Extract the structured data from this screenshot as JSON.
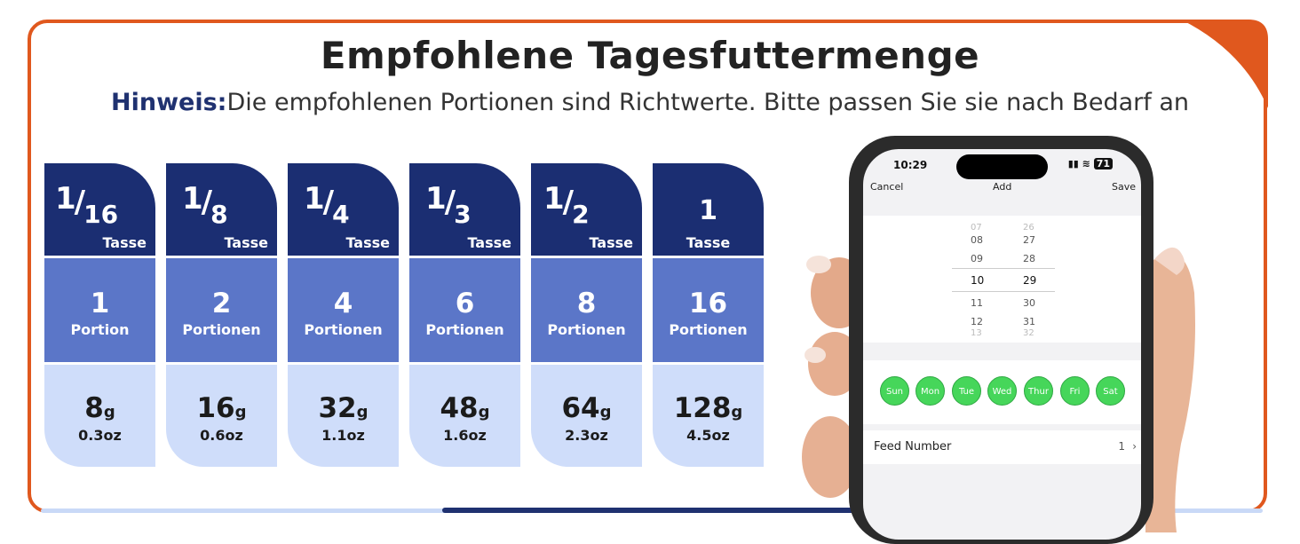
{
  "title": "Empfohlene Tagesfuttermenge",
  "note": {
    "prefix": "Hinweis:",
    "text": "Die empfohlenen Portionen sind Richtwerte. Bitte passen Sie sie nach Bedarf an"
  },
  "colors": {
    "frame": "#e0581e",
    "navy": "#1b2e72",
    "mid_blue": "#5b76c8",
    "light_blue": "#cfddfa"
  },
  "columns": [
    {
      "num": "1",
      "den": "16",
      "cup_label": "Tasse",
      "portion": "1",
      "portion_label": "Portion",
      "grams": "8",
      "g_unit": "g",
      "oz": "0.3oz"
    },
    {
      "num": "1",
      "den": "8",
      "cup_label": "Tasse",
      "portion": "2",
      "portion_label": "Portionen",
      "grams": "16",
      "g_unit": "g",
      "oz": "0.6oz"
    },
    {
      "num": "1",
      "den": "4",
      "cup_label": "Tasse",
      "portion": "4",
      "portion_label": "Portionen",
      "grams": "32",
      "g_unit": "g",
      "oz": "1.1oz"
    },
    {
      "num": "1",
      "den": "3",
      "cup_label": "Tasse",
      "portion": "6",
      "portion_label": "Portionen",
      "grams": "48",
      "g_unit": "g",
      "oz": "1.6oz"
    },
    {
      "num": "1",
      "den": "2",
      "cup_label": "Tasse",
      "portion": "8",
      "portion_label": "Portionen",
      "grams": "64",
      "g_unit": "g",
      "oz": "2.3oz"
    },
    {
      "whole": "1",
      "cup_label": "Tasse",
      "portion": "16",
      "portion_label": "Portionen",
      "grams": "128",
      "g_unit": "g",
      "oz": "4.5oz"
    }
  ],
  "phone": {
    "time": "10:29",
    "battery": "71",
    "cancel": "Cancel",
    "header_title": "Add",
    "save": "Save",
    "hours": [
      "07",
      "08",
      "09",
      "10",
      "11",
      "12",
      "13"
    ],
    "minutes": [
      "26",
      "27",
      "28",
      "29",
      "30",
      "31",
      "32"
    ],
    "days": [
      "Sun",
      "Mon",
      "Tue",
      "Wed",
      "Thur",
      "Fri",
      "Sat"
    ],
    "feed_label": "Feed Number",
    "feed_value": "1"
  }
}
